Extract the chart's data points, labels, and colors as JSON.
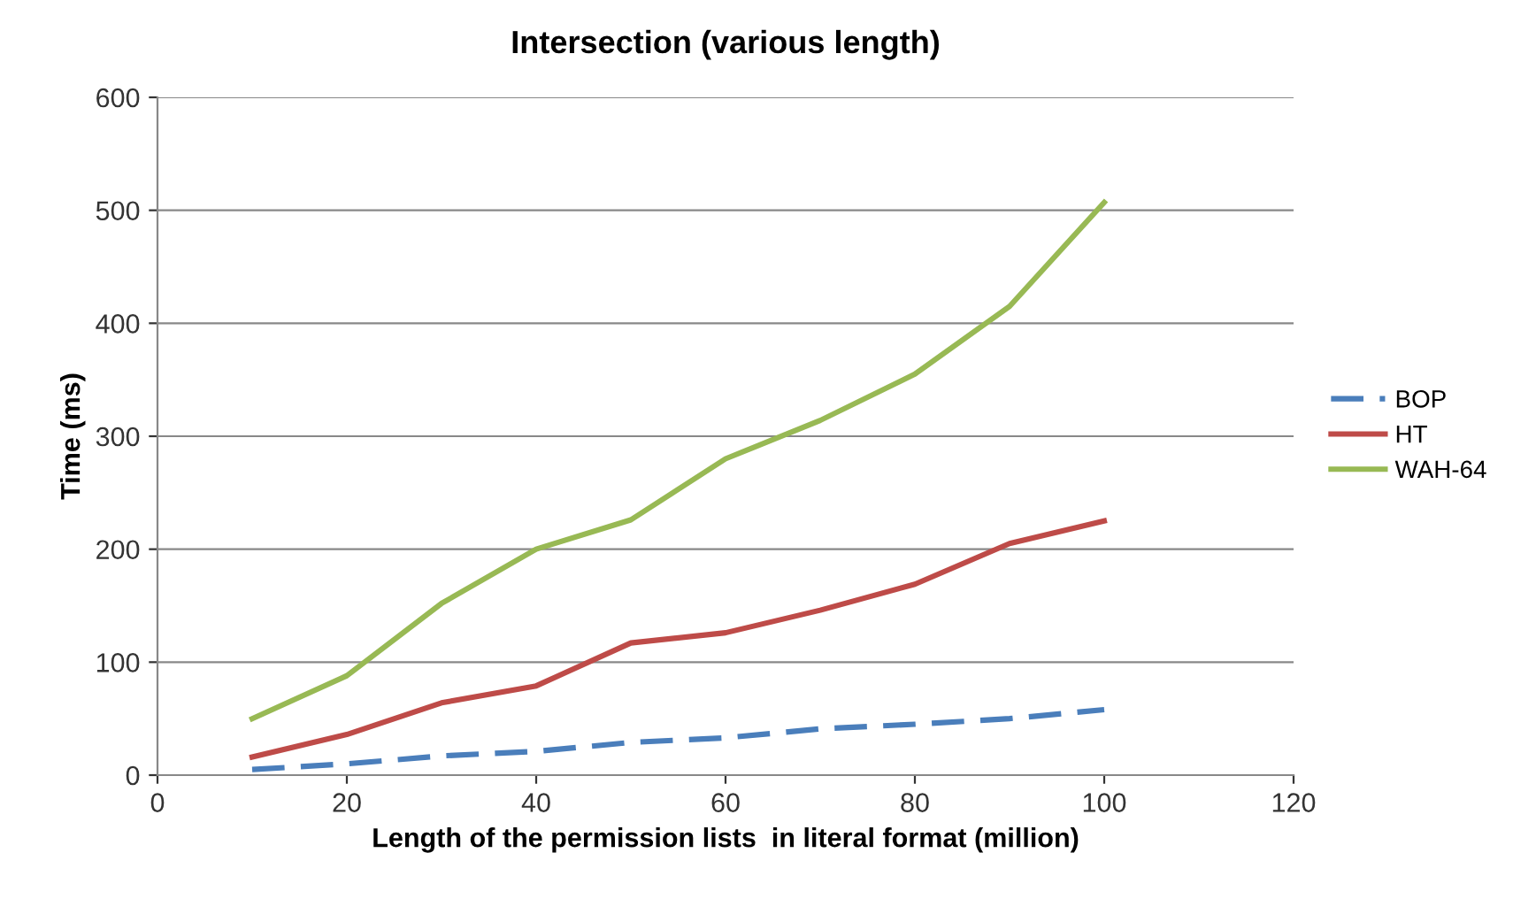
{
  "chart_data": {
    "type": "line",
    "title": "Intersection (various length)",
    "xlabel": "Length of the permission lists  in literal format (million)",
    "ylabel": "Time (ms)",
    "x": [
      10,
      20,
      30,
      40,
      50,
      60,
      70,
      80,
      90,
      100
    ],
    "series": [
      {
        "name": "BOP",
        "color": "#4a7ebb",
        "line_style": "dashed",
        "values": [
          5,
          10,
          17,
          21,
          29,
          33,
          41,
          45,
          50,
          58
        ]
      },
      {
        "name": "HT",
        "color": "#be4b48",
        "line_style": "solid",
        "values": [
          16,
          36,
          64,
          79,
          117,
          126,
          146,
          169,
          205,
          225
        ]
      },
      {
        "name": "WAH-64",
        "color": "#98b954",
        "line_style": "solid",
        "values": [
          50,
          88,
          152,
          200,
          226,
          280,
          314,
          355,
          415,
          507
        ]
      }
    ],
    "xlim": [
      0,
      120
    ],
    "xticks": [
      0,
      20,
      40,
      60,
      80,
      100,
      120
    ],
    "ylim": [
      0,
      600
    ],
    "yticks": [
      0,
      100,
      200,
      300,
      400,
      500,
      600
    ],
    "grid": "y",
    "legend": "right",
    "marker": "none"
  }
}
